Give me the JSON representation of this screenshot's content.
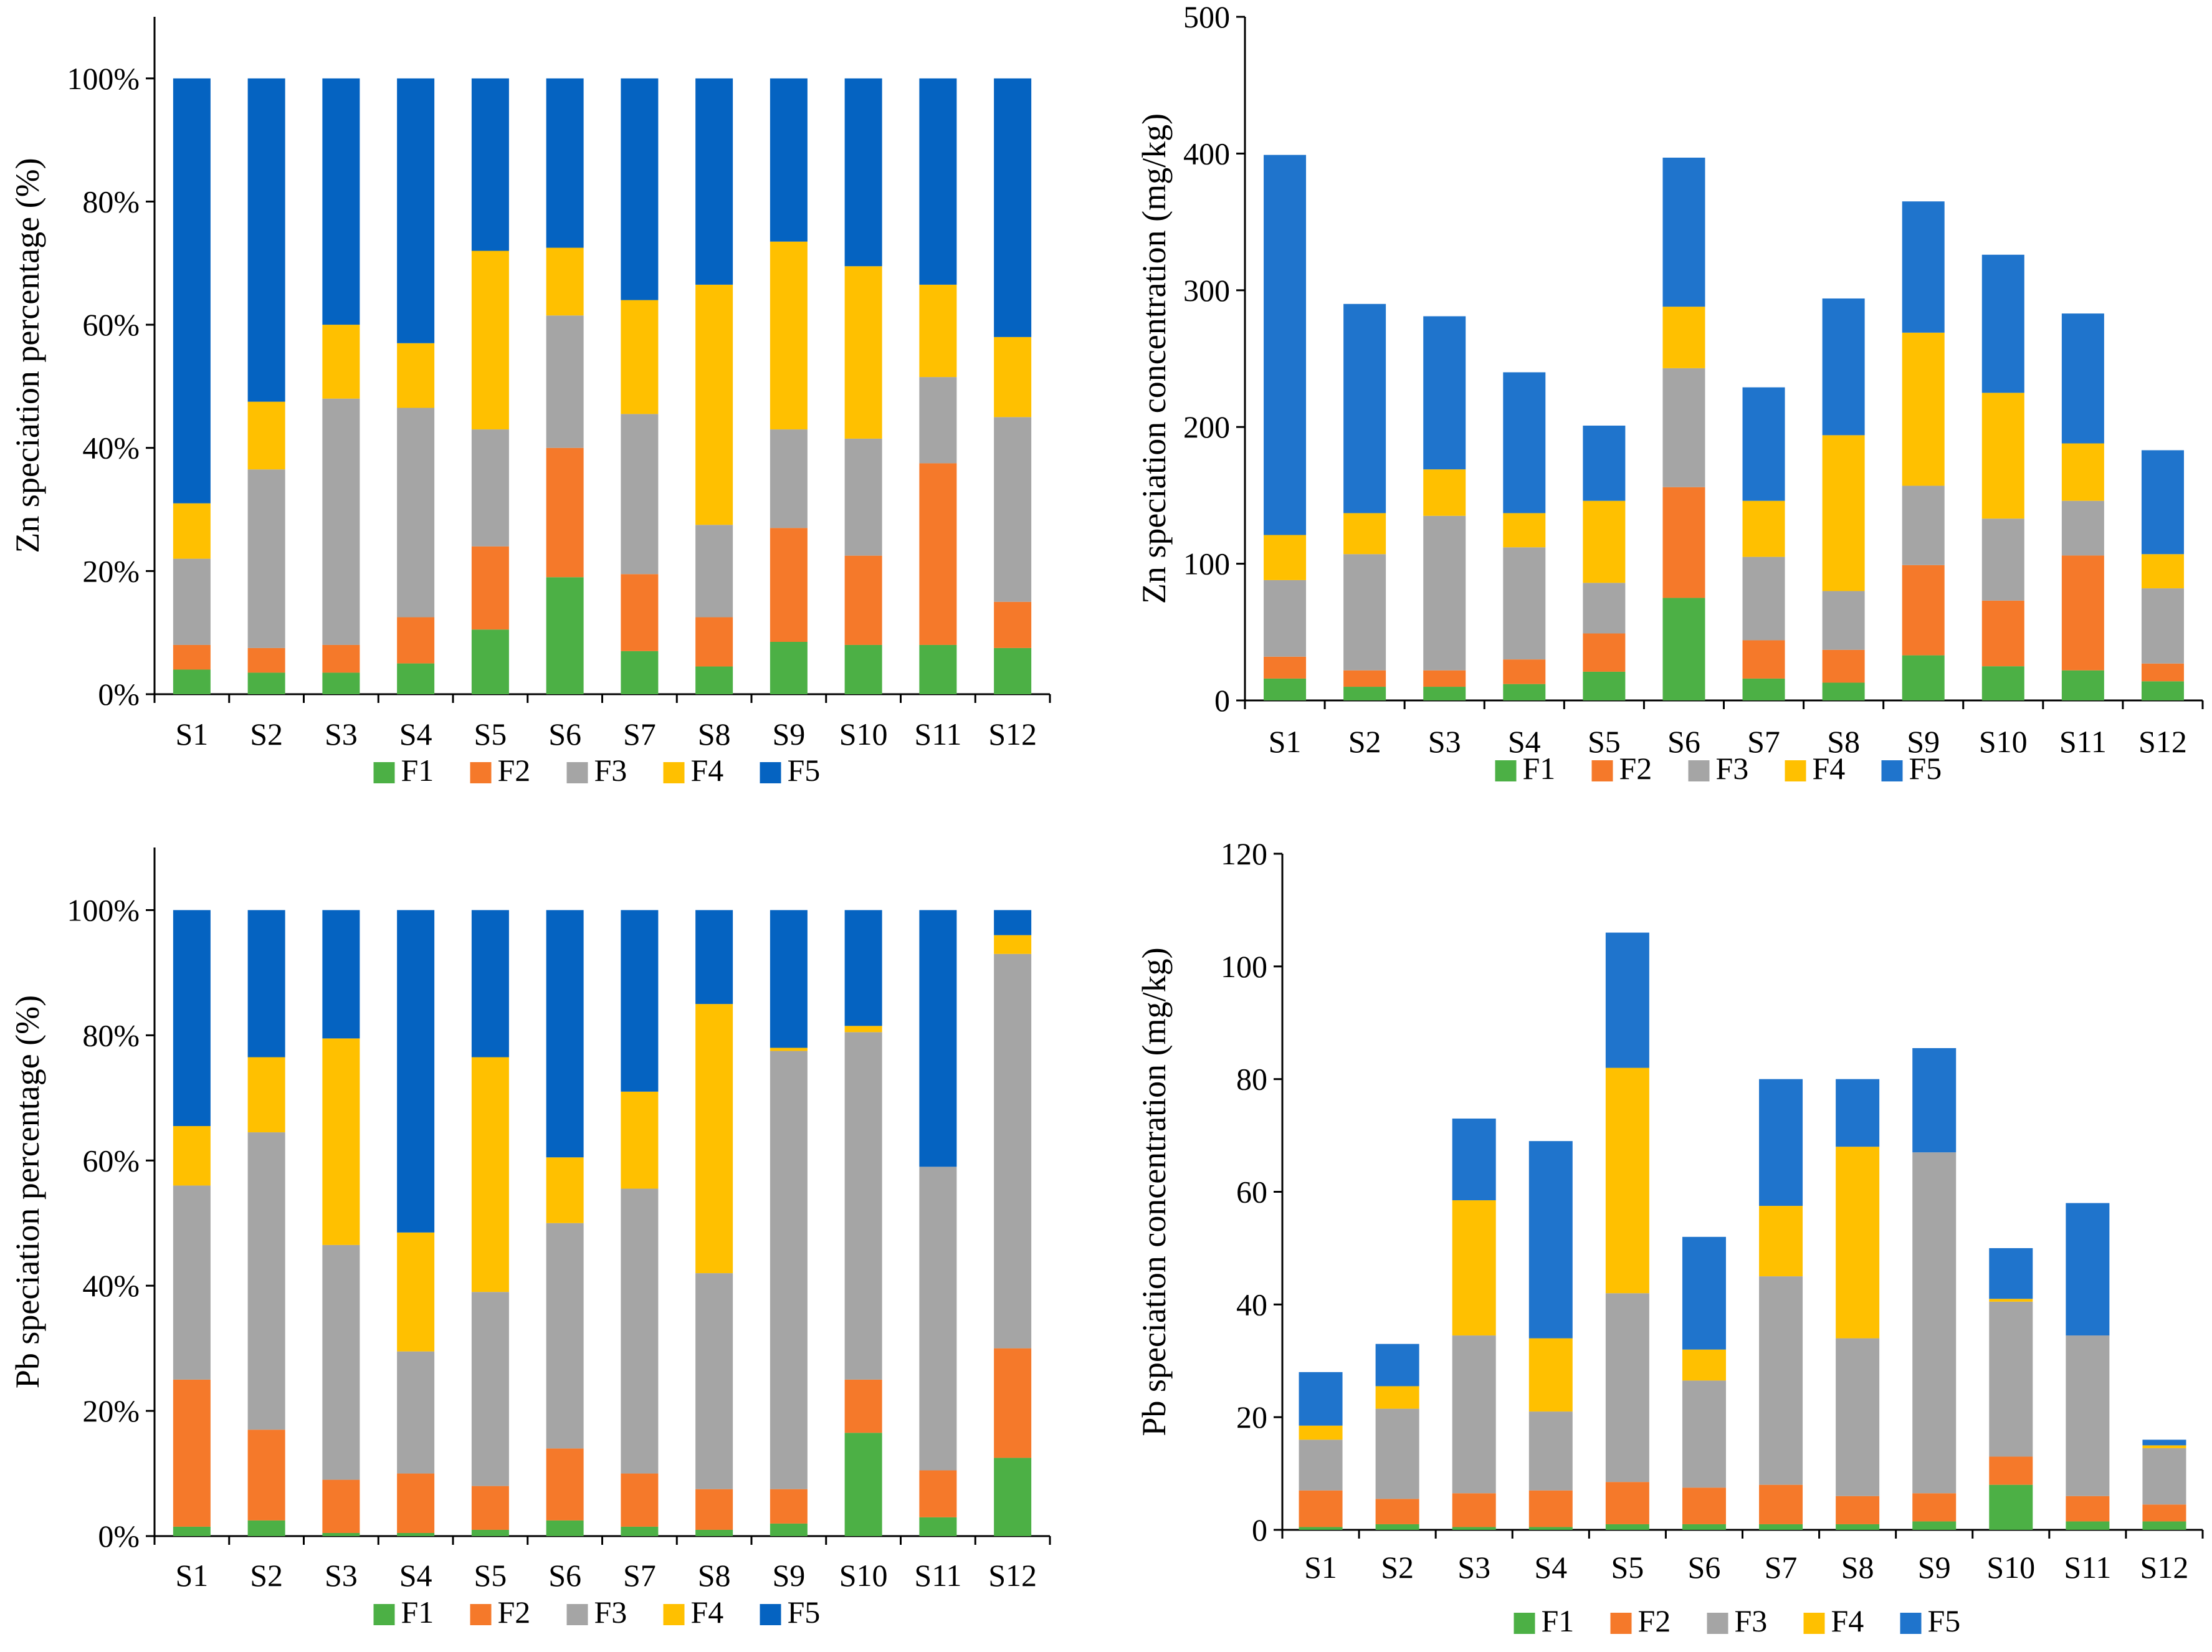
{
  "colors": {
    "F1": "#4CB045",
    "F2": "#F5792A",
    "F3": "#A5A5A5",
    "F4": "#FFC000",
    "F5_dark": "#0563C1",
    "F5_light": "#1F74CC",
    "axis": "#000000"
  },
  "chart_data": [
    {
      "id": "zn-pct",
      "type": "bar",
      "stacked": true,
      "title": "",
      "ylabel": "Zn speciation percentage (%)",
      "xlabel": "",
      "ylim": [
        0,
        110
      ],
      "yticks": [
        0,
        20,
        40,
        60,
        80,
        100
      ],
      "ytick_labels": [
        "0%",
        "20%",
        "40%",
        "60%",
        "80%",
        "100%"
      ],
      "categories": [
        "S1",
        "S2",
        "S3",
        "S4",
        "S5",
        "S6",
        "S7",
        "S8",
        "S9",
        "S10",
        "S11",
        "S12"
      ],
      "legend": [
        "F1",
        "F2",
        "F3",
        "F4",
        "F5"
      ],
      "legend_position": "bottom",
      "series": [
        {
          "name": "F1",
          "values": [
            4,
            3.5,
            3.5,
            5,
            10.5,
            19,
            7,
            4.5,
            8.5,
            8,
            8,
            7.5
          ]
        },
        {
          "name": "F2",
          "values": [
            4,
            4,
            4.5,
            7.5,
            13.5,
            21,
            12.5,
            8,
            18.5,
            14.5,
            29.5,
            7.5
          ]
        },
        {
          "name": "F3",
          "values": [
            14,
            29,
            40,
            34,
            19,
            21.5,
            26,
            15,
            16,
            19,
            14,
            30
          ]
        },
        {
          "name": "F4",
          "values": [
            9,
            11,
            12,
            10.5,
            29,
            11,
            18.5,
            39,
            30.5,
            28,
            15,
            13
          ]
        },
        {
          "name": "F5",
          "values": [
            69,
            52.5,
            40,
            43,
            28,
            27.5,
            36,
            33.5,
            26.5,
            30.5,
            33.5,
            42
          ]
        }
      ]
    },
    {
      "id": "zn-conc",
      "type": "bar",
      "stacked": true,
      "title": "",
      "ylabel": "Zn speciation concentration (mg/kg)",
      "xlabel": "",
      "ylim": [
        0,
        500
      ],
      "yticks": [
        0,
        100,
        200,
        300,
        400,
        500
      ],
      "ytick_labels": [
        "0",
        "100",
        "200",
        "300",
        "400",
        "500"
      ],
      "categories": [
        "S1",
        "S2",
        "S3",
        "S4",
        "S5",
        "S6",
        "S7",
        "S8",
        "S9",
        "S10",
        "S11",
        "S12"
      ],
      "legend": [
        "F1",
        "F2",
        "F3",
        "F4",
        "F5"
      ],
      "legend_position": "bottom",
      "series": [
        {
          "name": "F1",
          "values": [
            16,
            10,
            10,
            12,
            21,
            75,
            16,
            13,
            33,
            25,
            22,
            14
          ]
        },
        {
          "name": "F2",
          "values": [
            16,
            12,
            12,
            18,
            28,
            81,
            28,
            24,
            66,
            48,
            84,
            13
          ]
        },
        {
          "name": "F3",
          "values": [
            56,
            85,
            113,
            82,
            37,
            87,
            61,
            43,
            58,
            60,
            40,
            55
          ]
        },
        {
          "name": "F4",
          "values": [
            33,
            30,
            34,
            25,
            60,
            45,
            41,
            114,
            112,
            92,
            42,
            25
          ]
        },
        {
          "name": "F5",
          "values": [
            278,
            153,
            112,
            103,
            55,
            109,
            83,
            100,
            96,
            101,
            95,
            76
          ]
        }
      ]
    },
    {
      "id": "pb-pct",
      "type": "bar",
      "stacked": true,
      "title": "",
      "ylabel": "Pb speciation percentage (%)",
      "xlabel": "",
      "ylim": [
        0,
        110
      ],
      "yticks": [
        0,
        20,
        40,
        60,
        80,
        100
      ],
      "ytick_labels": [
        "0%",
        "20%",
        "40%",
        "60%",
        "80%",
        "100%"
      ],
      "categories": [
        "S1",
        "S2",
        "S3",
        "S4",
        "S5",
        "S6",
        "S7",
        "S8",
        "S9",
        "S10",
        "S11",
        "S12"
      ],
      "legend": [
        "F1",
        "F2",
        "F3",
        "F4",
        "F5"
      ],
      "legend_position": "bottom",
      "series": [
        {
          "name": "F1",
          "values": [
            1.5,
            2.5,
            0.5,
            0.5,
            1,
            2.5,
            1.5,
            1,
            2,
            16.5,
            3,
            12.5
          ]
        },
        {
          "name": "F2",
          "values": [
            23.5,
            14.5,
            8.5,
            9.5,
            7,
            11.5,
            8.5,
            6.5,
            5.5,
            8.5,
            7.5,
            17.5
          ]
        },
        {
          "name": "F3",
          "values": [
            31,
            47.5,
            37.5,
            19.5,
            31,
            36,
            45.5,
            34.5,
            70,
            55.5,
            48.5,
            63
          ]
        },
        {
          "name": "F4",
          "values": [
            9.5,
            12,
            33,
            19,
            37.5,
            10.5,
            15.5,
            43,
            0.5,
            1,
            0,
            3
          ]
        },
        {
          "name": "F5",
          "values": [
            34.5,
            23.5,
            20.5,
            51.5,
            23.5,
            39.5,
            29,
            15,
            22,
            18.5,
            41,
            4
          ]
        }
      ]
    },
    {
      "id": "pb-conc",
      "type": "bar",
      "stacked": true,
      "title": "",
      "ylabel": "Pb speciation concentration (mg/kg)",
      "xlabel": "",
      "ylim": [
        0,
        120
      ],
      "yticks": [
        0,
        20,
        40,
        60,
        80,
        100,
        120
      ],
      "ytick_labels": [
        "0",
        "20",
        "40",
        "60",
        "80",
        "100",
        "120"
      ],
      "categories": [
        "S1",
        "S2",
        "S3",
        "S4",
        "S5",
        "S6",
        "S7",
        "S8",
        "S9",
        "S10",
        "S11",
        "S12"
      ],
      "legend": [
        "F1",
        "F2",
        "F3",
        "F4",
        "F5"
      ],
      "legend_position": "bottom",
      "series": [
        {
          "name": "F1",
          "values": [
            0.5,
            1,
            0.5,
            0.5,
            1,
            1,
            1,
            1,
            1.5,
            8,
            1.5,
            1.5
          ]
        },
        {
          "name": "F2",
          "values": [
            6.5,
            4.5,
            6,
            6.5,
            7.5,
            6.5,
            7,
            5,
            5,
            5,
            4.5,
            3
          ]
        },
        {
          "name": "F3",
          "values": [
            9,
            16,
            28,
            14,
            33.5,
            19,
            37,
            28,
            60.5,
            27.5,
            28.5,
            10
          ]
        },
        {
          "name": "F4",
          "values": [
            2.5,
            4,
            24,
            13,
            40,
            5.5,
            12.5,
            34,
            0,
            0.5,
            0,
            0.5
          ]
        },
        {
          "name": "F5",
          "values": [
            9.5,
            7.5,
            14.5,
            35,
            24,
            20,
            22.5,
            12,
            18.5,
            9,
            23.5,
            1
          ]
        }
      ]
    }
  ]
}
